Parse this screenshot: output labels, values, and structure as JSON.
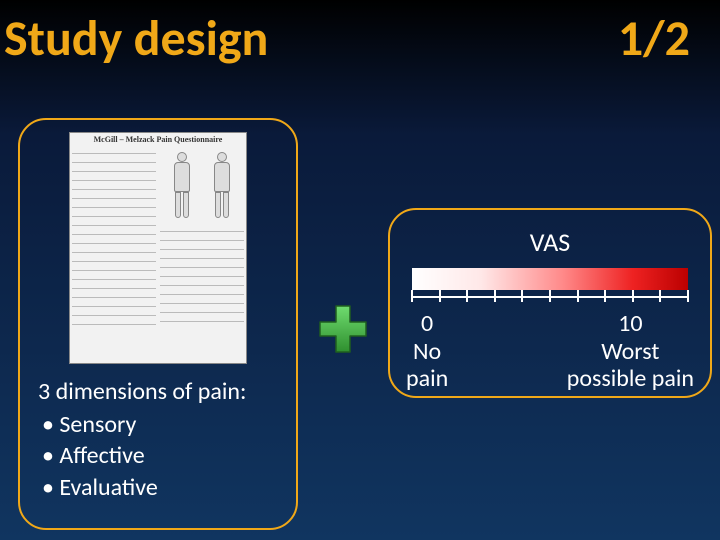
{
  "title": "Study design",
  "pagenum": "1/2",
  "colors": {
    "accent": "#f0a818",
    "bg_top": "#000000",
    "bg_bottom": "#103560",
    "text": "#ffffff"
  },
  "left_panel": {
    "questionnaire_label": "McGill – Melzack Pain Questionnaire",
    "dims_head": "3 dimensions of pain:",
    "dims": [
      "Sensory",
      "Affective",
      "Evaluative"
    ]
  },
  "plus": {
    "fill": "#3fae3f",
    "stroke": "#2c7a2c"
  },
  "right_panel": {
    "label": "VAS",
    "gradient_from": "#ffffff",
    "gradient_to": "#bb0000",
    "tick_count": 11,
    "min": {
      "num": "0",
      "line1": "No",
      "line2": "pain"
    },
    "max": {
      "num": "10",
      "line1": "Worst",
      "line2": "possible pain"
    }
  }
}
